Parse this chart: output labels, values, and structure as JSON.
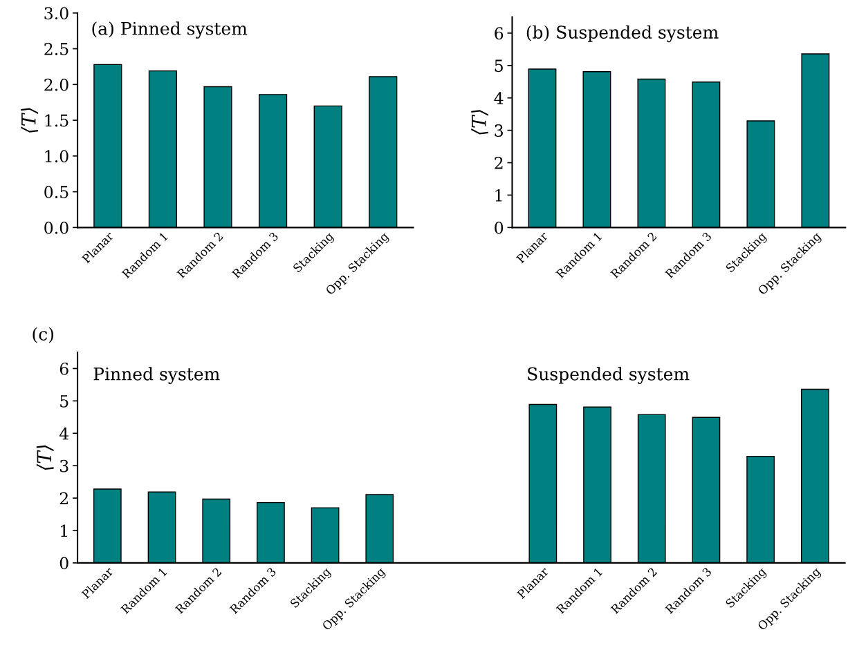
{
  "chart_data": [
    {
      "type": "bar",
      "title": "(a) Pinned system",
      "ylabel": "⟨T⟩",
      "categories": [
        "Planar",
        "Random 1",
        "Random 2",
        "Random 3",
        "Stacking",
        "Opp. Stacking"
      ],
      "values": [
        2.28,
        2.19,
        1.97,
        1.86,
        1.7,
        2.11
      ],
      "color": "#008080",
      "ylim": [
        0,
        3.0
      ],
      "yticks": [
        {
          "value": 0,
          "label": "0.0"
        },
        0.5,
        {
          "value": 1,
          "label": "1.0"
        },
        1.5,
        {
          "value": 2,
          "label": "2.0"
        },
        2.5,
        {
          "value": 3,
          "label": "3.0"
        }
      ],
      "grid": false
    },
    {
      "type": "bar",
      "title": "(b) Suspended system",
      "ylabel": "⟨T⟩",
      "categories": [
        "Planar",
        "Random 1",
        "Random 2",
        "Random 3",
        "Stacking",
        "Opp. Stacking"
      ],
      "values": [
        4.89,
        4.81,
        4.58,
        4.49,
        3.29,
        5.36
      ],
      "color": "#008080",
      "ylim": [
        0,
        6.5
      ],
      "yticks": [
        0,
        1,
        2,
        3,
        4,
        5,
        6
      ],
      "grid": false
    },
    {
      "type": "bar",
      "title": "(c)",
      "ylabel": "⟨T⟩",
      "annotations": [
        "Pinned system",
        "Suspended system"
      ],
      "categories": [
        "Planar",
        "Random 1",
        "Random 2",
        "Random 3",
        "Stacking",
        "Opp. Stacking",
        null,
        null,
        "Planar",
        "Random 1",
        "Random 2",
        "Random 3",
        "Stacking",
        "Opp. Stacking"
      ],
      "values": [
        2.28,
        2.19,
        1.97,
        1.86,
        1.7,
        2.11,
        null,
        null,
        4.89,
        4.81,
        4.58,
        4.49,
        3.29,
        5.36
      ],
      "color": "#008080",
      "ylim": [
        0,
        6.5
      ],
      "yticks": [
        0,
        1,
        2,
        3,
        4,
        5,
        6
      ],
      "grid": false
    }
  ]
}
